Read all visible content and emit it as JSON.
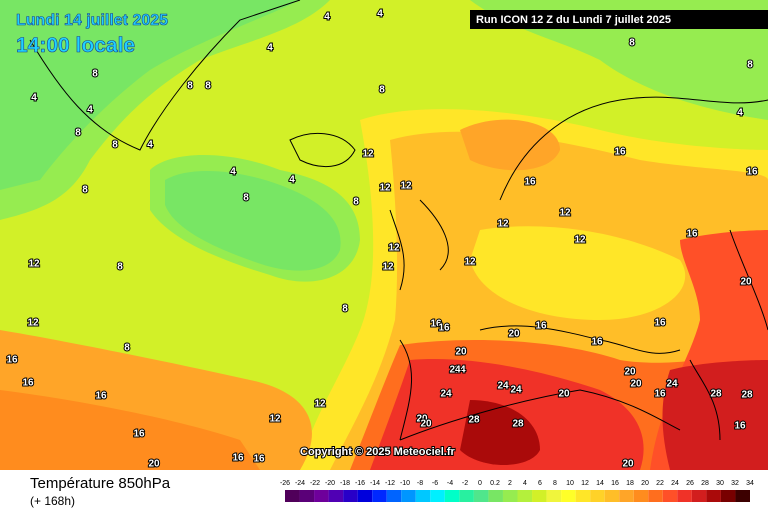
{
  "header": {
    "date": "Lundi 14 juillet 2025",
    "time": "14:00 locale",
    "run": "Run ICON 12 Z du Lundi 7 juillet 2025"
  },
  "copyright": "Copyright © 2025 Meteociel.fr",
  "footer": {
    "parameter": "Température 850hPa",
    "lead": "(+ 168h)"
  },
  "contour_labels": [
    "4",
    "4",
    "4",
    "8",
    "8",
    "8",
    "8",
    "8",
    "4",
    "4",
    "8",
    "8",
    "8",
    "4",
    "4",
    "4",
    "8",
    "8",
    "8",
    "12",
    "12",
    "12",
    "16",
    "16",
    "12",
    "12",
    "12",
    "12",
    "12",
    "16",
    "16",
    "12",
    "16",
    "20",
    "16",
    "16",
    "20",
    "24",
    "12",
    "16",
    "16",
    "20",
    "20",
    "24",
    "24",
    "24",
    "20",
    "20",
    "28",
    "28",
    "28",
    "24",
    "20",
    "20",
    "24",
    "28",
    "16",
    "16",
    "16",
    "16",
    "12",
    "12",
    "8",
    "8",
    "8",
    "12",
    "16",
    "16",
    "20",
    "20",
    "16",
    "16",
    "4"
  ],
  "colorbar": {
    "labels": [
      "-26",
      "-24",
      "-22",
      "-20",
      "-18",
      "-16",
      "-14",
      "-12",
      "-10",
      "-8",
      "-6",
      "-4",
      "-2",
      "0",
      "0.2",
      "2",
      "4",
      "6",
      "8",
      "10",
      "12",
      "14",
      "16",
      "18",
      "20",
      "22",
      "24",
      "26",
      "28",
      "30",
      "32",
      "34"
    ],
    "colors": [
      "#50005a",
      "#5a0078",
      "#6e009b",
      "#5000b4",
      "#2800c8",
      "#0000dc",
      "#0028ff",
      "#0064ff",
      "#0096ff",
      "#00c8ff",
      "#00f0ff",
      "#00ffc8",
      "#28f0a0",
      "#50e68c",
      "#78e664",
      "#96ec50",
      "#b4f03c",
      "#d2f028",
      "#f0f53c",
      "#ffff28",
      "#ffe628",
      "#ffd228",
      "#ffbe28",
      "#ffa528",
      "#ff8c1e",
      "#ff6e1e",
      "#ff5028",
      "#f03228",
      "#d21e1e",
      "#aa0a0a",
      "#780000",
      "#3c0000"
    ]
  }
}
